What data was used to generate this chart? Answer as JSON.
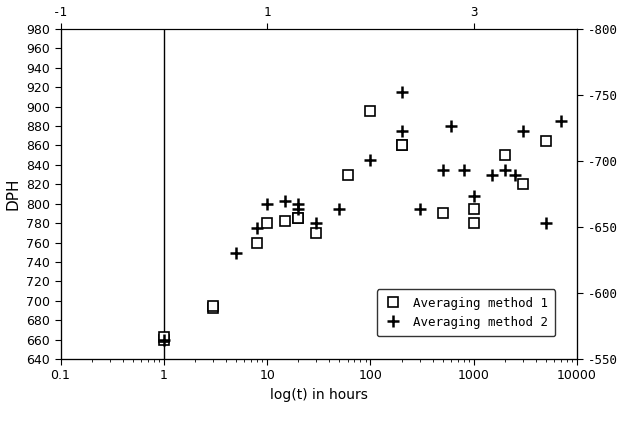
{
  "title": "",
  "xlabel": "log(t) in hours",
  "ylabel": "DPH",
  "xlim_log": [
    0.1,
    10000
  ],
  "ylim_left": [
    640,
    980
  ],
  "ylim_right": [
    550,
    800
  ],
  "vline_x": 1.0,
  "method1_x": [
    1.0,
    1.0,
    3.0,
    3.0,
    8.0,
    10.0,
    15.0,
    20.0,
    20.0,
    30.0,
    60.0,
    100.0,
    200.0,
    200.0,
    500.0,
    1000.0,
    1000.0,
    2000.0,
    3000.0,
    5000.0
  ],
  "method1_y": [
    660,
    663,
    693,
    695,
    760,
    780,
    782,
    785,
    785,
    770,
    830,
    895,
    860,
    860,
    790,
    795,
    780,
    850,
    820,
    865
  ],
  "method2_x": [
    1.0,
    5.0,
    8.0,
    10.0,
    15.0,
    20.0,
    20.0,
    30.0,
    50.0,
    100.0,
    200.0,
    200.0,
    300.0,
    500.0,
    600.0,
    800.0,
    1000.0,
    1500.0,
    2000.0,
    2500.0,
    3000.0,
    5000.0,
    7000.0
  ],
  "method2_y": [
    660,
    749,
    775,
    800,
    803,
    800,
    795,
    780,
    795,
    845,
    875,
    915,
    795,
    835,
    880,
    835,
    808,
    830,
    835,
    830,
    875,
    780,
    885
  ],
  "xticks_bottom": [
    0.1,
    1,
    10,
    100,
    1000,
    10000
  ],
  "xtick_labels_bottom": [
    "0.1",
    "1",
    "10",
    "100",
    "1000",
    "10000"
  ],
  "xticks_top_vals": [
    -1,
    1,
    3
  ],
  "xticks_top_labels": [
    "-1",
    "1",
    "3"
  ],
  "yticks_left": [
    640,
    660,
    680,
    700,
    720,
    740,
    760,
    780,
    800,
    820,
    840,
    860,
    880,
    900,
    920,
    940,
    960,
    980
  ],
  "yticks_right": [
    550,
    600,
    650,
    700,
    750,
    800
  ],
  "ytick_labels_right": [
    "-550",
    "-600",
    "-650",
    "-700",
    "-750",
    "-800"
  ],
  "background_color": "#ffffff",
  "marker1": "s",
  "marker2": "+",
  "marker_color": "black",
  "marker_size1": 7,
  "marker_size2": 9,
  "marker_linewidth2": 1.8,
  "font_family": "DejaVu Sans",
  "font_size": 9,
  "legend_fontsize": 9
}
